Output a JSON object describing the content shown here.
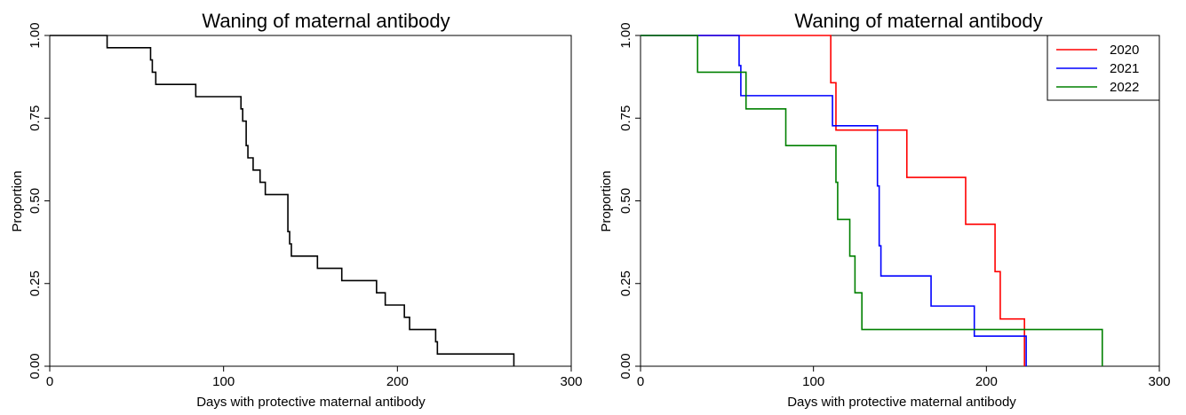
{
  "chart_data": [
    {
      "type": "line",
      "step": true,
      "title": "Waning of maternal antibody",
      "xlabel": "Days with protective maternal antibody",
      "ylabel": "Proportion",
      "xlim": [
        0,
        300
      ],
      "ylim": [
        0,
        1
      ],
      "xticks": [
        "0",
        "100",
        "200",
        "300"
      ],
      "yticks": [
        "0.00",
        "0.25",
        "0.50",
        "0.75",
        "1.00"
      ],
      "grid": false,
      "legend": null,
      "series": [
        {
          "color": "#000000",
          "x": [
            0,
            33,
            57,
            58,
            59,
            61,
            84,
            110,
            111,
            113,
            114,
            117,
            121,
            124,
            128,
            137,
            138,
            139,
            140,
            154,
            168,
            188,
            190,
            193,
            204,
            206,
            207,
            222,
            223,
            267
          ],
          "y": [
            1.0,
            0.963,
            0.963,
            0.926,
            0.889,
            0.852,
            0.815,
            0.778,
            0.741,
            0.667,
            0.63,
            0.593,
            0.556,
            0.519,
            0.519,
            0.407,
            0.37,
            0.333,
            0.333,
            0.296,
            0.259,
            0.222,
            0.222,
            0.185,
            0.148,
            0.148,
            0.111,
            0.074,
            0.037,
            0.0
          ]
        }
      ]
    },
    {
      "type": "line",
      "step": true,
      "title": "Waning of maternal antibody",
      "xlabel": "Days with protective maternal antibody",
      "ylabel": "Proportion",
      "xlim": [
        0,
        300
      ],
      "ylim": [
        0,
        1
      ],
      "xticks": [
        "0",
        "100",
        "200",
        "300"
      ],
      "yticks": [
        "0.00",
        "0.25",
        "0.50",
        "0.75",
        "1.00"
      ],
      "grid": false,
      "legend": "top-right",
      "series": [
        {
          "name": "2020",
          "color": "#ff0000",
          "x": [
            0,
            110,
            113,
            154,
            188,
            205,
            208,
            222
          ],
          "y": [
            1.0,
            0.857,
            0.714,
            0.571,
            0.429,
            0.286,
            0.143,
            0.0
          ]
        },
        {
          "name": "2021",
          "color": "#0000ff",
          "x": [
            0,
            57,
            58,
            111,
            137,
            138,
            139,
            168,
            193,
            223
          ],
          "y": [
            1.0,
            0.909,
            0.818,
            0.727,
            0.545,
            0.364,
            0.273,
            0.182,
            0.091,
            0.0
          ]
        },
        {
          "name": "2022",
          "color": "#008000",
          "x": [
            0,
            33,
            61,
            84,
            113,
            114,
            117,
            121,
            124,
            128,
            267
          ],
          "y": [
            1.0,
            0.889,
            0.778,
            0.667,
            0.556,
            0.444,
            0.444,
            0.333,
            0.222,
            0.111,
            0.0
          ]
        }
      ]
    }
  ]
}
